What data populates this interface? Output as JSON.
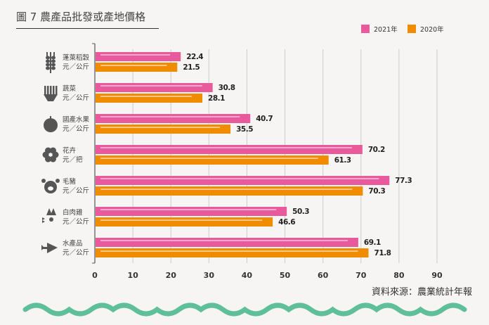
{
  "title": "圖 7  農產品批發或產地價格",
  "source": "資料來源：農業統計年報",
  "colors": {
    "2021": "#e85a9b",
    "2020": "#f08c00",
    "wave": "#5fbf9a",
    "grid": "#cccccc"
  },
  "chart_data": {
    "type": "bar",
    "orientation": "horizontal",
    "title": "圖 7  農產品批發或產地價格",
    "categories": [
      {
        "name": "蓬萊稻穀",
        "unit": "元／公斤",
        "icon": "rice-icon"
      },
      {
        "name": "蔬菜",
        "unit": "元／公斤",
        "icon": "vegetable-icon"
      },
      {
        "name": "國產水果",
        "unit": "元／公斤",
        "icon": "fruit-icon"
      },
      {
        "name": "花卉",
        "unit": "元／把",
        "icon": "flower-icon"
      },
      {
        "name": "毛豬",
        "unit": "元／公斤",
        "icon": "pig-icon"
      },
      {
        "name": "白肉雞",
        "unit": "元／公斤",
        "icon": "chicken-icon"
      },
      {
        "name": "水產品",
        "unit": "元／公斤",
        "icon": "fish-icon"
      }
    ],
    "series": [
      {
        "name": "2021年",
        "values": [
          22.4,
          30.8,
          40.7,
          70.2,
          77.3,
          50.3,
          69.1
        ],
        "labels": [
          "22.4",
          "30.8",
          "40.7",
          "70.2",
          "77.3",
          "50.3",
          "69.1"
        ]
      },
      {
        "name": "2020年",
        "values": [
          21.5,
          28.1,
          35.5,
          61.3,
          70.3,
          46.6,
          71.8
        ],
        "labels": [
          "21.5",
          "28.1",
          "35.5",
          "61.3",
          "70.3",
          "46.6",
          "71.8"
        ]
      }
    ],
    "xlim": [
      0,
      90
    ],
    "xticks": [
      "0",
      "10",
      "20",
      "30",
      "40",
      "50",
      "60",
      "70",
      "80",
      "90"
    ],
    "grid": true,
    "legend": "top-right"
  }
}
